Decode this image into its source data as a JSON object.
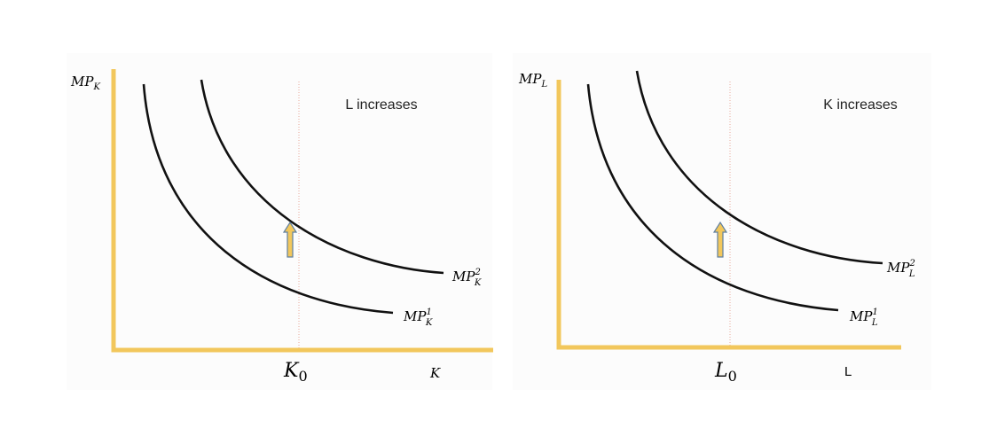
{
  "panels": [
    {
      "y_label": {
        "base": "MP",
        "sub": "K"
      },
      "note": "L increases",
      "x_label": "K",
      "marker": {
        "base": "K",
        "sub": "0"
      },
      "curves": [
        {
          "base": "MP",
          "sup": "1",
          "sub": "K"
        },
        {
          "base": "MP",
          "sup": "2",
          "sub": "K"
        }
      ]
    },
    {
      "y_label": {
        "base": "MP",
        "sub": "L"
      },
      "note": "K increases",
      "x_label": "L",
      "marker": {
        "base": "L",
        "sub": "0"
      },
      "curves": [
        {
          "base": "MP",
          "sup": "1",
          "sub": "L"
        },
        {
          "base": "MP",
          "sup": "2",
          "sub": "L"
        }
      ]
    }
  ]
}
